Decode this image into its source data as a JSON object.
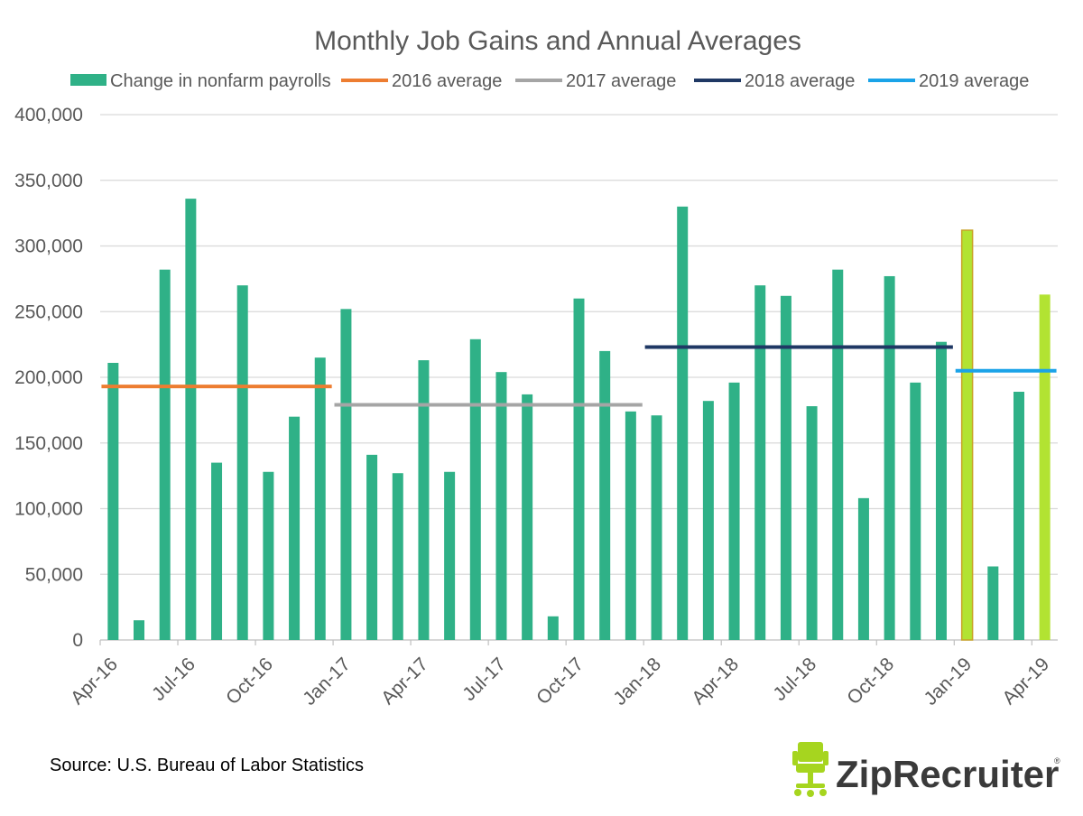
{
  "chart_data": {
    "type": "bar",
    "title": "Monthly Job Gains and Annual Averages",
    "source": "Source: U.S. Bureau of Labor Statistics",
    "ylim": [
      0,
      400000
    ],
    "yticks": [
      0,
      50000,
      100000,
      150000,
      200000,
      250000,
      300000,
      350000,
      400000
    ],
    "ytick_labels": [
      "0",
      "50,000",
      "100,000",
      "150,000",
      "200,000",
      "250,000",
      "300,000",
      "350,000",
      "400,000"
    ],
    "xtick_labels": [
      "Apr-16",
      "Jul-16",
      "Oct-16",
      "Jan-17",
      "Apr-17",
      "Jul-17",
      "Oct-17",
      "Jan-18",
      "Apr-18",
      "Jul-18",
      "Oct-18",
      "Jan-19",
      "Apr-19"
    ],
    "grid": true,
    "legend_position": "top",
    "categories": [
      "Apr-16",
      "May-16",
      "Jun-16",
      "Jul-16",
      "Aug-16",
      "Sep-16",
      "Oct-16",
      "Nov-16",
      "Dec-16",
      "Jan-17",
      "Feb-17",
      "Mar-17",
      "Apr-17",
      "May-17",
      "Jun-17",
      "Jul-17",
      "Aug-17",
      "Sep-17",
      "Oct-17",
      "Nov-17",
      "Dec-17",
      "Jan-18",
      "Feb-18",
      "Mar-18",
      "Apr-18",
      "May-18",
      "Jun-18",
      "Jul-18",
      "Aug-18",
      "Sep-18",
      "Oct-18",
      "Nov-18",
      "Dec-18",
      "Jan-19",
      "Feb-19",
      "Mar-19",
      "Apr-19"
    ],
    "series": [
      {
        "name": "Change in nonfarm payrolls",
        "kind": "bar",
        "color": "#2fb187",
        "highlight_color": "#b2e332",
        "highlight_categories": [
          "Jan-19",
          "Apr-19"
        ],
        "values": [
          211000,
          15000,
          282000,
          336000,
          135000,
          270000,
          128000,
          170000,
          215000,
          252000,
          141000,
          127000,
          213000,
          128000,
          229000,
          204000,
          187000,
          18000,
          260000,
          220000,
          174000,
          171000,
          330000,
          182000,
          196000,
          270000,
          262000,
          178000,
          282000,
          108000,
          277000,
          196000,
          227000,
          312000,
          56000,
          189000,
          263000
        ]
      },
      {
        "name": "2016 average",
        "kind": "line",
        "color": "#ed7d31",
        "value": 193000,
        "from": "Apr-16",
        "to": "Dec-16"
      },
      {
        "name": "2017 average",
        "kind": "line",
        "color": "#a5a5a5",
        "value": 179000,
        "from": "Jan-17",
        "to": "Dec-17"
      },
      {
        "name": "2018 average",
        "kind": "line",
        "color": "#1f3864",
        "value": 223000,
        "from": "Jan-18",
        "to": "Dec-18"
      },
      {
        "name": "2019 average",
        "kind": "line",
        "color": "#1aa3e8",
        "value": 205000,
        "from": "Jan-19",
        "to": "Apr-19"
      }
    ]
  },
  "logo": {
    "text": "ZipRecruiter",
    "mark": "®",
    "icon": "office-chair-icon",
    "color": "#a6d51f"
  }
}
